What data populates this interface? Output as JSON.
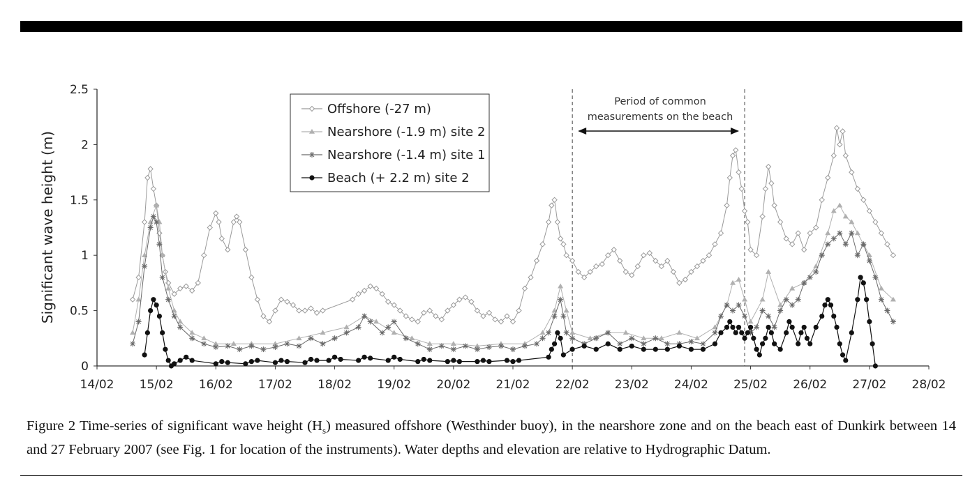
{
  "figure": {
    "caption_prefix": "Figure 2 Time-series of significant wave height (H",
    "caption_sub": "s",
    "caption_suffix": ") measured offshore (Westhinder buoy), in the nearshore zone and on the beach east of Dunkirk between 14 and 27 February 2007 (see Fig. 1 for location of the instruments). Water depths and elevation are relative to Hydrographic Datum."
  },
  "chart_data": {
    "type": "line",
    "title": "",
    "xlabel": "",
    "ylabel": "Significant wave height (m)",
    "x_ticks": [
      "14/02",
      "15/02",
      "16/02",
      "17/02",
      "18/02",
      "19/02",
      "20/02",
      "21/02",
      "22/02",
      "23/02",
      "24/02",
      "25/02",
      "26/02",
      "27/02",
      "28/02"
    ],
    "xlim": [
      14,
      28
    ],
    "ylim": [
      0,
      2.5
    ],
    "y_ticks": [
      "0",
      "0.5",
      "1",
      "1.5",
      "2",
      "2.5"
    ],
    "grid": false,
    "legend_position": "top-left",
    "x_units": "day of February 2007",
    "annotation": {
      "text_line1": "Period of common",
      "text_line2": "measurements on the beach",
      "start": 22.0,
      "end": 24.9
    },
    "series": [
      {
        "name": "Offshore (-27 m)",
        "marker": "diamond-open",
        "color": "#9a9a9a",
        "x": [
          14.6,
          14.7,
          14.8,
          14.85,
          14.9,
          14.95,
          15.0,
          15.05,
          15.1,
          15.15,
          15.2,
          15.3,
          15.4,
          15.5,
          15.6,
          15.7,
          15.8,
          15.9,
          16.0,
          16.05,
          16.1,
          16.2,
          16.3,
          16.35,
          16.4,
          16.5,
          16.6,
          16.7,
          16.8,
          16.9,
          17.0,
          17.1,
          17.2,
          17.3,
          17.4,
          17.5,
          17.6,
          17.7,
          17.8,
          18.3,
          18.4,
          18.5,
          18.6,
          18.7,
          18.8,
          18.9,
          19.0,
          19.1,
          19.2,
          19.3,
          19.4,
          19.5,
          19.6,
          19.7,
          19.8,
          19.9,
          20.0,
          20.1,
          20.2,
          20.3,
          20.4,
          20.5,
          20.6,
          20.7,
          20.8,
          20.9,
          21.0,
          21.1,
          21.2,
          21.3,
          21.4,
          21.5,
          21.6,
          21.65,
          21.7,
          21.75,
          21.8,
          21.85,
          21.9,
          22.0,
          22.1,
          22.2,
          22.3,
          22.4,
          22.5,
          22.6,
          22.7,
          22.8,
          22.9,
          23.0,
          23.1,
          23.2,
          23.3,
          23.4,
          23.5,
          23.6,
          23.7,
          23.8,
          23.9,
          24.0,
          24.1,
          24.2,
          24.3,
          24.4,
          24.5,
          24.6,
          24.65,
          24.7,
          24.75,
          24.8,
          24.85,
          24.9,
          24.95,
          25.0,
          25.1,
          25.2,
          25.25,
          25.3,
          25.35,
          25.4,
          25.5,
          25.6,
          25.7,
          25.8,
          25.9,
          26.0,
          26.1,
          26.2,
          26.3,
          26.4,
          26.45,
          26.5,
          26.55,
          26.6,
          26.7,
          26.8,
          26.9,
          27.0,
          27.1,
          27.2,
          27.3,
          27.4
        ],
        "y": [
          0.6,
          0.8,
          1.3,
          1.7,
          1.78,
          1.6,
          1.45,
          1.2,
          1.0,
          0.85,
          0.75,
          0.65,
          0.7,
          0.72,
          0.68,
          0.75,
          1.0,
          1.25,
          1.38,
          1.3,
          1.15,
          1.05,
          1.3,
          1.35,
          1.3,
          1.05,
          0.8,
          0.6,
          0.45,
          0.4,
          0.5,
          0.6,
          0.58,
          0.55,
          0.5,
          0.5,
          0.52,
          0.48,
          0.5,
          0.6,
          0.65,
          0.68,
          0.72,
          0.7,
          0.65,
          0.58,
          0.55,
          0.5,
          0.45,
          0.42,
          0.4,
          0.48,
          0.5,
          0.45,
          0.42,
          0.5,
          0.55,
          0.6,
          0.62,
          0.58,
          0.5,
          0.45,
          0.48,
          0.42,
          0.4,
          0.45,
          0.4,
          0.5,
          0.7,
          0.8,
          0.95,
          1.1,
          1.3,
          1.45,
          1.5,
          1.3,
          1.15,
          1.1,
          1.0,
          0.95,
          0.85,
          0.8,
          0.85,
          0.9,
          0.92,
          1.0,
          1.05,
          0.95,
          0.85,
          0.82,
          0.9,
          1.0,
          1.02,
          0.95,
          0.9,
          0.95,
          0.85,
          0.75,
          0.78,
          0.85,
          0.9,
          0.95,
          1.0,
          1.1,
          1.2,
          1.45,
          1.7,
          1.9,
          1.95,
          1.75,
          1.6,
          1.4,
          1.3,
          1.05,
          1.0,
          1.35,
          1.6,
          1.8,
          1.65,
          1.45,
          1.3,
          1.15,
          1.1,
          1.2,
          1.05,
          1.2,
          1.25,
          1.5,
          1.7,
          1.9,
          2.15,
          2.0,
          2.12,
          1.9,
          1.75,
          1.6,
          1.5,
          1.4,
          1.3,
          1.2,
          1.1,
          1.0
        ]
      },
      {
        "name": "Nearshore (-1.9 m) site 2",
        "marker": "triangle",
        "color": "#b0b0b0",
        "x": [
          14.6,
          14.7,
          14.8,
          14.9,
          15.0,
          15.05,
          15.1,
          15.2,
          15.3,
          15.4,
          15.6,
          15.8,
          16.0,
          16.3,
          16.6,
          17.0,
          17.4,
          17.8,
          18.2,
          18.5,
          18.7,
          19.0,
          19.3,
          19.6,
          20.0,
          20.4,
          20.8,
          21.2,
          21.5,
          21.7,
          21.8,
          21.9,
          22.0,
          22.3,
          22.6,
          22.9,
          23.2,
          23.5,
          23.8,
          24.1,
          24.4,
          24.6,
          24.7,
          24.8,
          24.9,
          25.0,
          25.2,
          25.3,
          25.5,
          25.7,
          25.9,
          26.1,
          26.3,
          26.4,
          26.5,
          26.6,
          26.7,
          26.8,
          26.9,
          27.0,
          27.2,
          27.4
        ],
        "y": [
          0.3,
          0.6,
          1.0,
          1.3,
          1.45,
          1.3,
          1.0,
          0.7,
          0.5,
          0.4,
          0.3,
          0.25,
          0.2,
          0.2,
          0.2,
          0.2,
          0.25,
          0.3,
          0.35,
          0.45,
          0.4,
          0.3,
          0.25,
          0.2,
          0.2,
          0.18,
          0.2,
          0.2,
          0.3,
          0.5,
          0.72,
          0.5,
          0.3,
          0.25,
          0.3,
          0.3,
          0.25,
          0.25,
          0.3,
          0.25,
          0.35,
          0.55,
          0.75,
          0.78,
          0.6,
          0.4,
          0.6,
          0.85,
          0.55,
          0.7,
          0.75,
          0.9,
          1.2,
          1.4,
          1.45,
          1.35,
          1.3,
          1.2,
          1.1,
          1.0,
          0.7,
          0.6
        ]
      },
      {
        "name": "Nearshore (-1.4 m) site 1",
        "marker": "star",
        "color": "#6a6a6a",
        "x": [
          14.6,
          14.7,
          14.8,
          14.9,
          14.95,
          15.0,
          15.05,
          15.1,
          15.2,
          15.3,
          15.4,
          15.6,
          15.8,
          16.0,
          16.2,
          16.4,
          16.6,
          16.8,
          17.0,
          17.2,
          17.4,
          17.6,
          17.8,
          18.0,
          18.2,
          18.4,
          18.5,
          18.6,
          18.8,
          18.9,
          19.0,
          19.2,
          19.4,
          19.6,
          19.8,
          20.0,
          20.2,
          20.4,
          20.6,
          20.8,
          21.0,
          21.2,
          21.4,
          21.5,
          21.6,
          21.7,
          21.8,
          21.85,
          21.9,
          22.0,
          22.2,
          22.4,
          22.6,
          22.8,
          23.0,
          23.2,
          23.4,
          23.6,
          23.8,
          24.0,
          24.2,
          24.4,
          24.5,
          24.6,
          24.7,
          24.8,
          24.9,
          25.0,
          25.1,
          25.2,
          25.3,
          25.4,
          25.5,
          25.6,
          25.7,
          25.8,
          25.9,
          26.0,
          26.1,
          26.2,
          26.3,
          26.4,
          26.5,
          26.6,
          26.7,
          26.8,
          26.9,
          27.0,
          27.1,
          27.2,
          27.3,
          27.4
        ],
        "y": [
          0.2,
          0.4,
          0.9,
          1.25,
          1.35,
          1.3,
          1.1,
          0.8,
          0.6,
          0.45,
          0.35,
          0.25,
          0.2,
          0.17,
          0.18,
          0.15,
          0.18,
          0.15,
          0.17,
          0.2,
          0.18,
          0.25,
          0.2,
          0.25,
          0.3,
          0.35,
          0.45,
          0.4,
          0.3,
          0.35,
          0.4,
          0.25,
          0.2,
          0.15,
          0.18,
          0.15,
          0.18,
          0.15,
          0.17,
          0.18,
          0.15,
          0.18,
          0.2,
          0.25,
          0.3,
          0.45,
          0.6,
          0.45,
          0.3,
          0.25,
          0.2,
          0.25,
          0.3,
          0.2,
          0.25,
          0.2,
          0.25,
          0.2,
          0.2,
          0.22,
          0.2,
          0.3,
          0.45,
          0.55,
          0.5,
          0.55,
          0.45,
          0.3,
          0.35,
          0.5,
          0.45,
          0.35,
          0.5,
          0.6,
          0.55,
          0.6,
          0.75,
          0.8,
          0.85,
          1.0,
          1.1,
          1.15,
          1.2,
          1.1,
          1.2,
          1.0,
          1.1,
          0.95,
          0.8,
          0.6,
          0.5,
          0.4
        ]
      },
      {
        "name": "Beach (+ 2.2 m) site 2",
        "marker": "circle-filled",
        "color": "#111111",
        "x": [
          14.8,
          14.85,
          14.9,
          14.95,
          15.0,
          15.05,
          15.1,
          15.15,
          15.2,
          15.25,
          15.3,
          15.4,
          15.5,
          15.6,
          16.0,
          16.1,
          16.2,
          16.5,
          16.6,
          16.7,
          17.0,
          17.1,
          17.2,
          17.5,
          17.6,
          17.7,
          17.9,
          18.0,
          18.1,
          18.4,
          18.5,
          18.6,
          18.9,
          19.0,
          19.1,
          19.4,
          19.5,
          19.6,
          19.9,
          20.0,
          20.1,
          20.4,
          20.5,
          20.6,
          20.9,
          21.0,
          21.1,
          21.6,
          21.65,
          21.7,
          21.75,
          21.8,
          21.85,
          22.0,
          22.2,
          22.4,
          22.6,
          22.8,
          23.0,
          23.2,
          23.4,
          23.6,
          23.8,
          24.0,
          24.2,
          24.4,
          24.5,
          24.6,
          24.65,
          24.7,
          24.75,
          24.8,
          24.85,
          24.9,
          24.95,
          25.0,
          25.05,
          25.1,
          25.15,
          25.2,
          25.25,
          25.3,
          25.35,
          25.4,
          25.5,
          25.6,
          25.65,
          25.7,
          25.8,
          25.85,
          25.9,
          25.95,
          26.0,
          26.1,
          26.2,
          26.25,
          26.3,
          26.35,
          26.4,
          26.45,
          26.5,
          26.55,
          26.6,
          26.7,
          26.8,
          26.85,
          26.9,
          26.95,
          27.0,
          27.05,
          27.1
        ],
        "y": [
          0.1,
          0.3,
          0.5,
          0.6,
          0.55,
          0.45,
          0.3,
          0.15,
          0.05,
          0.0,
          0.02,
          0.05,
          0.08,
          0.05,
          0.02,
          0.04,
          0.03,
          0.02,
          0.04,
          0.05,
          0.03,
          0.05,
          0.04,
          0.03,
          0.06,
          0.05,
          0.05,
          0.08,
          0.06,
          0.05,
          0.08,
          0.07,
          0.05,
          0.08,
          0.06,
          0.04,
          0.06,
          0.05,
          0.04,
          0.05,
          0.04,
          0.04,
          0.05,
          0.04,
          0.05,
          0.04,
          0.05,
          0.08,
          0.15,
          0.2,
          0.3,
          0.25,
          0.1,
          0.15,
          0.18,
          0.15,
          0.2,
          0.15,
          0.18,
          0.15,
          0.15,
          0.15,
          0.18,
          0.15,
          0.15,
          0.2,
          0.3,
          0.35,
          0.4,
          0.35,
          0.3,
          0.35,
          0.3,
          0.25,
          0.3,
          0.35,
          0.25,
          0.15,
          0.1,
          0.2,
          0.25,
          0.35,
          0.3,
          0.2,
          0.15,
          0.3,
          0.4,
          0.35,
          0.2,
          0.3,
          0.35,
          0.25,
          0.2,
          0.35,
          0.45,
          0.55,
          0.6,
          0.55,
          0.45,
          0.35,
          0.2,
          0.1,
          0.05,
          0.3,
          0.6,
          0.8,
          0.75,
          0.6,
          0.4,
          0.2,
          0.0
        ]
      }
    ]
  }
}
